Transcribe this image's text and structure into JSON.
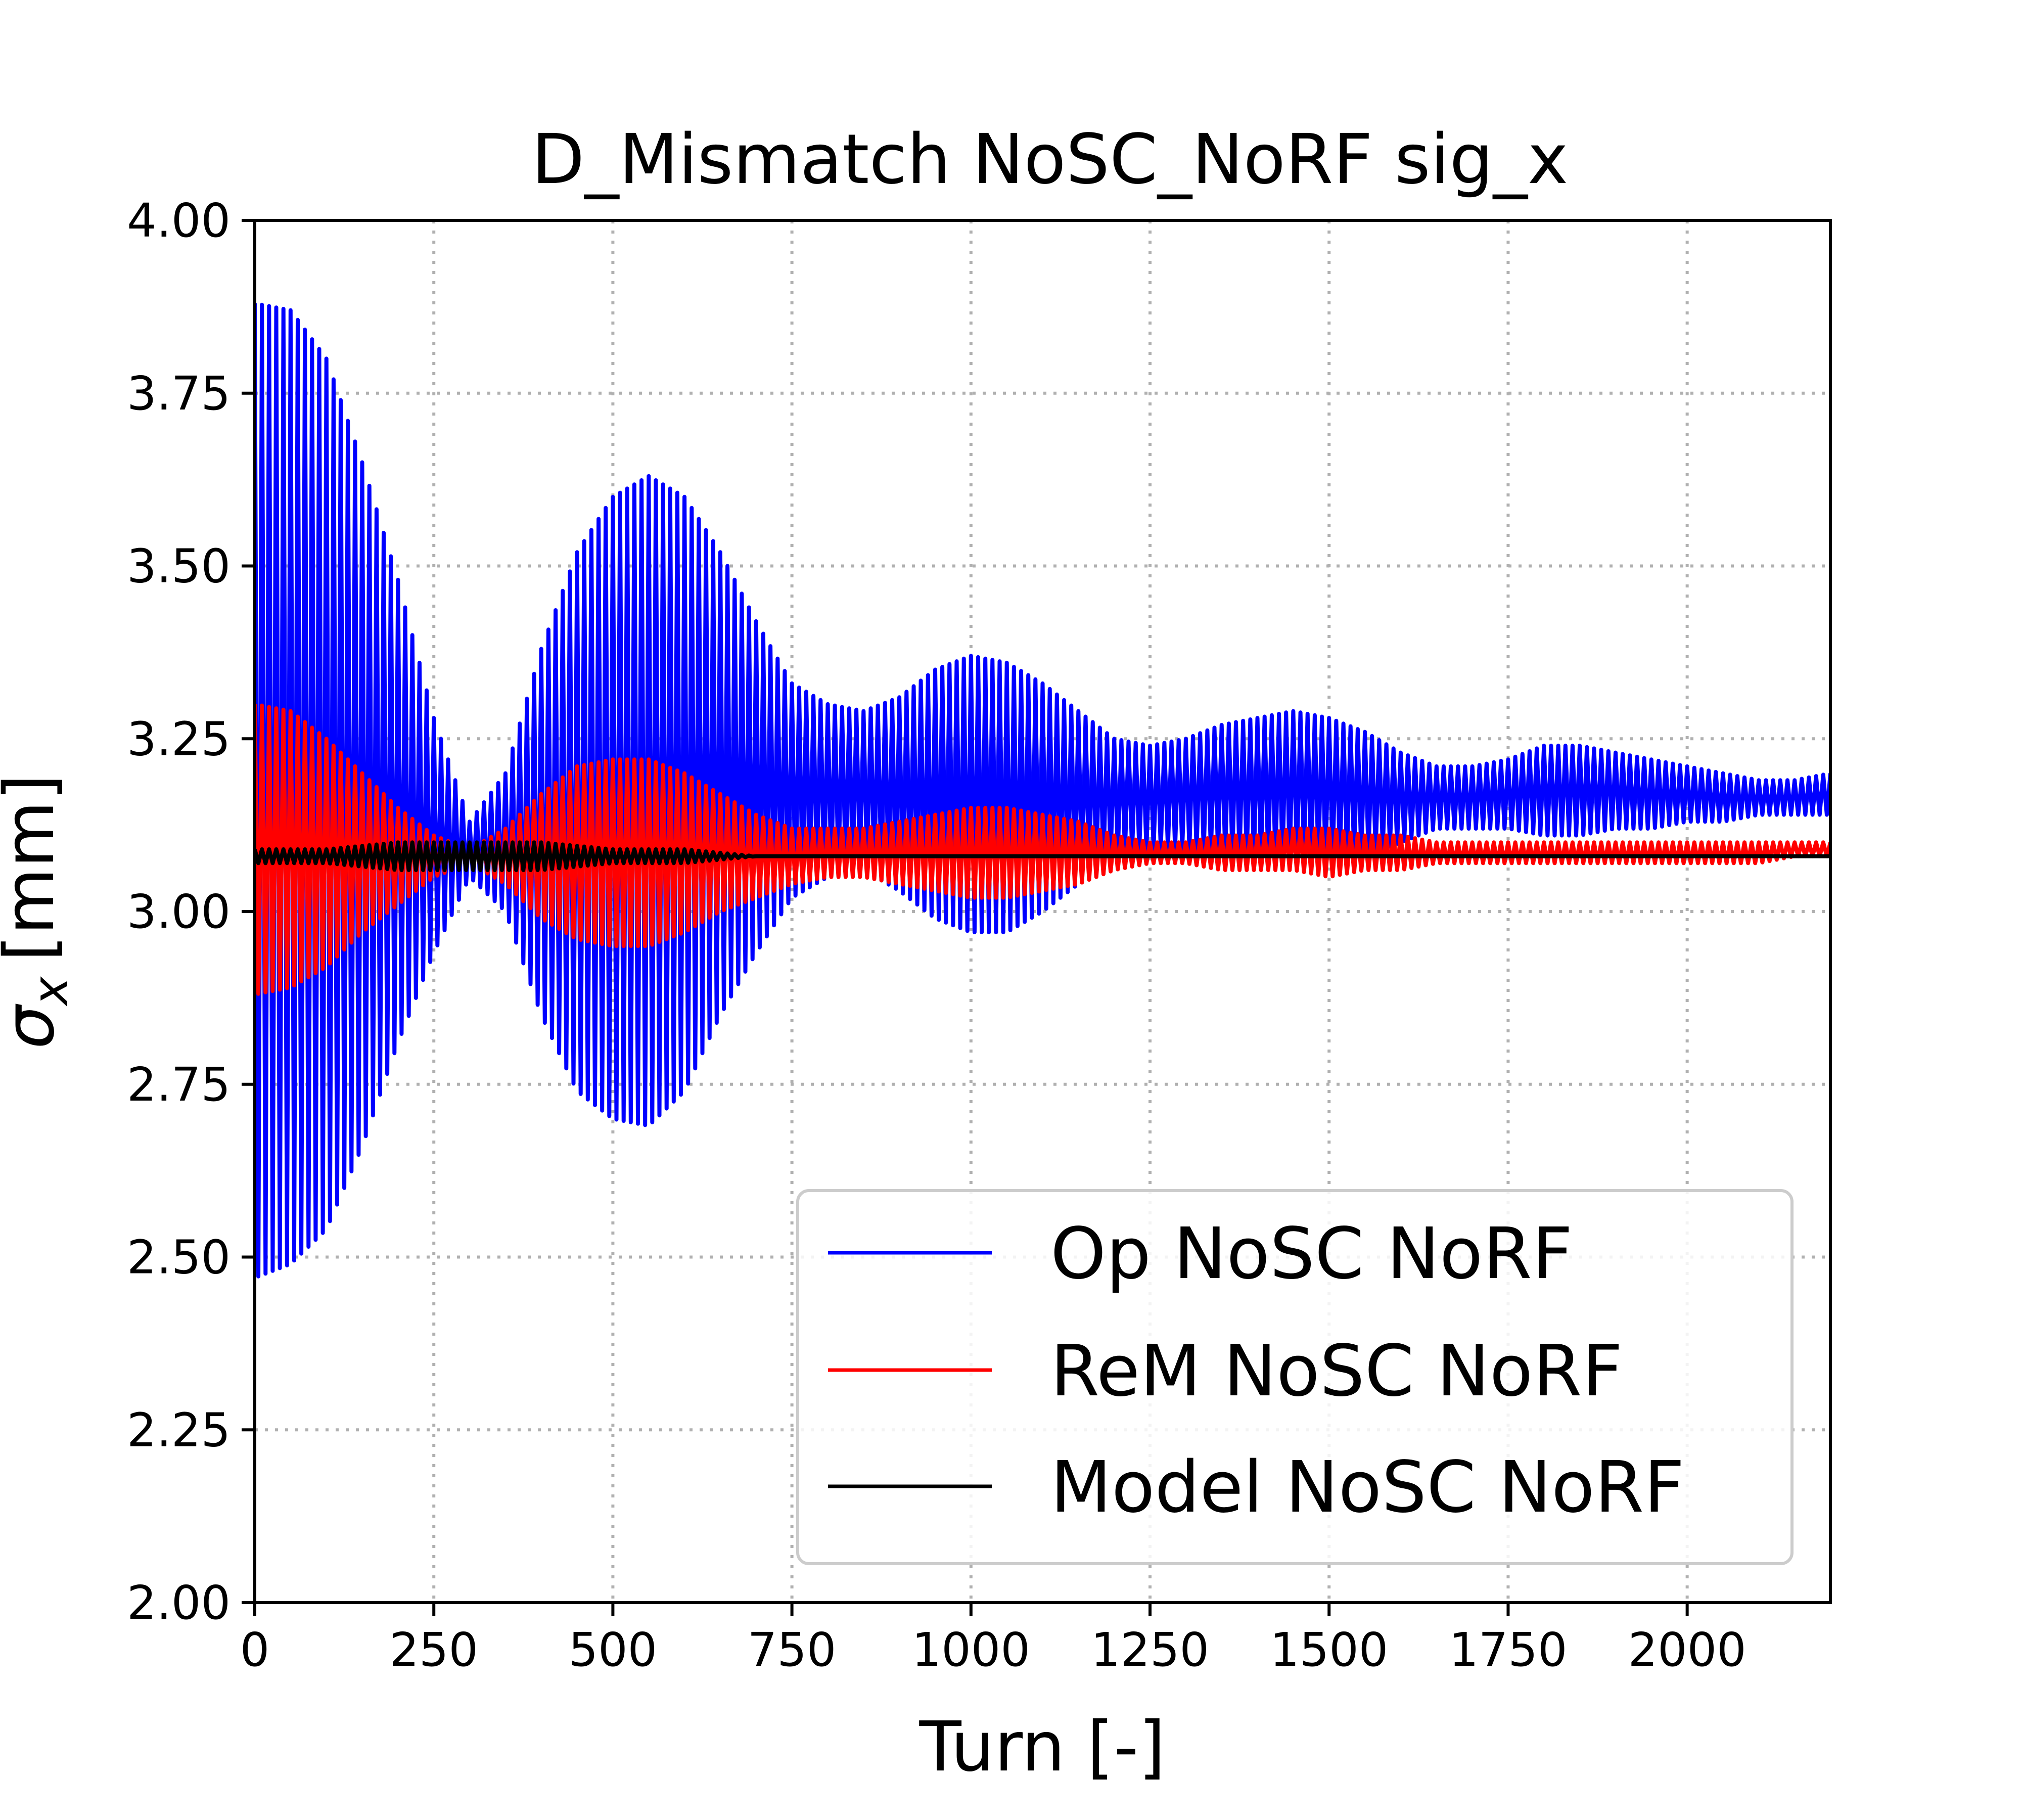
{
  "chart_data": {
    "type": "line",
    "title": "D_Mismatch NoSC_NoRF sig_x",
    "xlabel": "Turn [-]",
    "ylabel_symbol": "σ",
    "ylabel_subscript": "x",
    "ylabel_unit": "[mm]",
    "xlim": [
      0,
      2200
    ],
    "ylim": [
      2.0,
      4.0
    ],
    "x_ticks": [
      0,
      250,
      500,
      750,
      1000,
      1250,
      1500,
      1750,
      2000
    ],
    "x_tick_labels": [
      "0",
      "250",
      "500",
      "750",
      "1000",
      "1250",
      "1500",
      "1750",
      "2000"
    ],
    "y_ticks": [
      2.0,
      2.25,
      2.5,
      2.75,
      3.0,
      3.25,
      3.5,
      3.75,
      4.0
    ],
    "y_tick_labels": [
      "2.00",
      "2.25",
      "2.50",
      "2.75",
      "3.00",
      "3.25",
      "3.50",
      "3.75",
      "4.00"
    ],
    "grid": true,
    "legend_position": "lower-right",
    "series": [
      {
        "name": "Op NoSC NoRF",
        "color": "#0000ff",
        "envelope_x": [
          0,
          50,
          100,
          150,
          200,
          250,
          300,
          350,
          400,
          450,
          500,
          550,
          600,
          650,
          700,
          750,
          800,
          850,
          900,
          950,
          1000,
          1050,
          1100,
          1150,
          1200,
          1250,
          1300,
          1350,
          1400,
          1450,
          1500,
          1550,
          1600,
          1650,
          1700,
          1750,
          1800,
          1850,
          1900,
          1950,
          2000,
          2050,
          2100,
          2150,
          2200
        ],
        "upper": [
          3.88,
          3.87,
          3.8,
          3.65,
          3.48,
          3.28,
          3.13,
          3.2,
          3.38,
          3.52,
          3.6,
          3.63,
          3.6,
          3.52,
          3.42,
          3.33,
          3.3,
          3.29,
          3.31,
          3.35,
          3.37,
          3.36,
          3.33,
          3.29,
          3.25,
          3.24,
          3.25,
          3.27,
          3.28,
          3.29,
          3.28,
          3.26,
          3.23,
          3.21,
          3.21,
          3.22,
          3.24,
          3.24,
          3.23,
          3.22,
          3.21,
          3.2,
          3.19,
          3.19,
          3.2
        ],
        "lower": [
          2.47,
          2.49,
          2.54,
          2.66,
          2.81,
          2.94,
          3.05,
          3.0,
          2.85,
          2.74,
          2.7,
          2.69,
          2.74,
          2.85,
          2.94,
          3.02,
          3.05,
          3.06,
          3.03,
          2.99,
          2.97,
          2.97,
          3.0,
          3.04,
          3.08,
          3.09,
          3.09,
          3.08,
          3.07,
          3.07,
          3.07,
          3.08,
          3.1,
          3.12,
          3.12,
          3.12,
          3.11,
          3.11,
          3.12,
          3.12,
          3.13,
          3.13,
          3.14,
          3.14,
          3.14
        ]
      },
      {
        "name": "ReM NoSC NoRF",
        "color": "#ff0000",
        "envelope_x": [
          0,
          50,
          100,
          150,
          200,
          250,
          300,
          350,
          400,
          450,
          500,
          550,
          600,
          650,
          700,
          750,
          800,
          850,
          900,
          950,
          1000,
          1050,
          1100,
          1150,
          1200,
          1250,
          1300,
          1350,
          1400,
          1450,
          1500,
          1550,
          1600,
          1650,
          1700,
          1750,
          1800,
          1850,
          1900,
          1950,
          2000,
          2050,
          2100,
          2150,
          2200
        ],
        "upper": [
          3.3,
          3.29,
          3.25,
          3.2,
          3.15,
          3.11,
          3.09,
          3.12,
          3.17,
          3.21,
          3.22,
          3.22,
          3.2,
          3.17,
          3.14,
          3.12,
          3.12,
          3.12,
          3.13,
          3.14,
          3.15,
          3.15,
          3.14,
          3.13,
          3.11,
          3.1,
          3.1,
          3.11,
          3.11,
          3.12,
          3.12,
          3.11,
          3.11,
          3.1,
          3.1,
          3.1,
          3.1,
          3.1,
          3.1,
          3.1,
          3.1,
          3.1,
          3.1,
          3.1,
          3.1
        ],
        "lower": [
          2.88,
          2.89,
          2.92,
          2.97,
          3.01,
          3.05,
          3.07,
          3.04,
          2.99,
          2.96,
          2.95,
          2.95,
          2.97,
          3.0,
          3.02,
          3.04,
          3.05,
          3.05,
          3.04,
          3.03,
          3.02,
          3.02,
          3.03,
          3.04,
          3.06,
          3.07,
          3.07,
          3.06,
          3.06,
          3.06,
          3.05,
          3.06,
          3.06,
          3.07,
          3.07,
          3.07,
          3.07,
          3.07,
          3.07,
          3.07,
          3.07,
          3.07,
          3.07,
          3.08,
          3.08
        ]
      },
      {
        "name": "Model NoSC NoRF",
        "color": "#000000",
        "envelope_x": [
          0,
          100,
          200,
          300,
          400,
          500,
          600,
          700,
          800,
          900,
          1000,
          1200,
          1400,
          1600,
          1800,
          2000,
          2200
        ],
        "upper": [
          3.09,
          3.09,
          3.1,
          3.1,
          3.1,
          3.09,
          3.09,
          3.08,
          3.08,
          3.08,
          3.08,
          3.08,
          3.08,
          3.08,
          3.08,
          3.08,
          3.08
        ],
        "lower": [
          3.07,
          3.07,
          3.06,
          3.06,
          3.06,
          3.07,
          3.07,
          3.08,
          3.08,
          3.08,
          3.08,
          3.08,
          3.08,
          3.08,
          3.08,
          3.08,
          3.08
        ]
      }
    ]
  }
}
